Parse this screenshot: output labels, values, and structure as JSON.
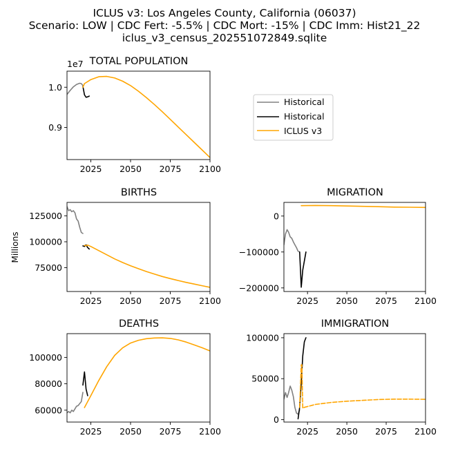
{
  "figure": {
    "title_lines": [
      "ICLUS v3: Los Angeles County, California (06037)",
      "Scenario: LOW | CDC Fert: -5.5% | CDC Mort: -15% | CDC Imm: Hist21_22",
      "iclus_v3_census_202551072849.sqlite"
    ],
    "y_label": "Millions"
  },
  "legend": {
    "entries": [
      {
        "label": "Historical",
        "color": "#808080"
      },
      {
        "label": "Historical",
        "color": "#000000"
      },
      {
        "label": "ICLUS v3",
        "color": "#ffa500"
      }
    ]
  },
  "chart_data": [
    {
      "id": "population",
      "type": "line",
      "title": "TOTAL POPULATION",
      "xlim": [
        2010,
        2100
      ],
      "ylim": [
        8200000,
        10400000
      ],
      "y_multiplier_label": "1e7",
      "x_ticks": [
        2025,
        2050,
        2075,
        2100
      ],
      "y_ticks": [
        {
          "value": 9000000,
          "label": "0.9"
        },
        {
          "value": 10000000,
          "label": "1.0"
        }
      ],
      "series": [
        {
          "color": "#808080",
          "dashed": false,
          "x": [
            2010,
            2012,
            2014,
            2016,
            2018,
            2019,
            2020
          ],
          "y": [
            9820000,
            9920000,
            10010000,
            10070000,
            10100000,
            10090000,
            10040000
          ]
        },
        {
          "color": "#000000",
          "dashed": false,
          "x": [
            2020,
            2021,
            2022,
            2023,
            2024
          ],
          "y": [
            10020000,
            9810000,
            9750000,
            9760000,
            9780000
          ]
        },
        {
          "color": "#ffa500",
          "dashed": false,
          "x": [
            2020,
            2021,
            2025,
            2030,
            2035,
            2040,
            2045,
            2050,
            2055,
            2060,
            2065,
            2070,
            2075,
            2080,
            2085,
            2090,
            2095,
            2100
          ],
          "y": [
            10000000,
            10090000,
            10190000,
            10260000,
            10270000,
            10230000,
            10150000,
            10040000,
            9900000,
            9740000,
            9570000,
            9390000,
            9200000,
            9010000,
            8820000,
            8630000,
            8440000,
            8250000
          ]
        }
      ]
    },
    {
      "id": "births",
      "type": "line",
      "title": "BIRTHS",
      "xlim": [
        2010,
        2100
      ],
      "ylim": [
        52000,
        138000
      ],
      "x_ticks": [
        2025,
        2050,
        2075,
        2100
      ],
      "y_ticks": [
        {
          "value": 75000,
          "label": "75000"
        },
        {
          "value": 100000,
          "label": "100000"
        },
        {
          "value": 125000,
          "label": "125000"
        }
      ],
      "series": [
        {
          "color": "#808080",
          "dashed": false,
          "x": [
            2010,
            2011,
            2012,
            2013,
            2014,
            2015,
            2016,
            2017,
            2018,
            2019,
            2020
          ],
          "y": [
            134000,
            130000,
            131000,
            129000,
            130000,
            128000,
            122000,
            120000,
            114000,
            109000,
            108000
          ]
        },
        {
          "color": "#000000",
          "dashed": false,
          "x": [
            2020,
            2021,
            2022,
            2023,
            2024
          ],
          "y": [
            96000,
            95500,
            97000,
            94500,
            93000
          ]
        },
        {
          "color": "#ffa500",
          "dashed": false,
          "x": [
            2021,
            2022,
            2023,
            2025,
            2030,
            2035,
            2040,
            2045,
            2050,
            2055,
            2060,
            2065,
            2070,
            2075,
            2080,
            2085,
            2090,
            2095,
            2100
          ],
          "y": [
            96500,
            96200,
            96800,
            95500,
            91500,
            87500,
            83500,
            80000,
            76800,
            74000,
            71300,
            68800,
            66500,
            64500,
            62600,
            60800,
            59200,
            57600,
            56000
          ]
        }
      ]
    },
    {
      "id": "migration",
      "type": "line",
      "title": "MIGRATION",
      "xlim": [
        2010,
        2100
      ],
      "ylim": [
        -210000,
        38000
      ],
      "x_ticks": [
        2025,
        2050,
        2075,
        2100
      ],
      "y_ticks": [
        {
          "value": -200000,
          "label": "−200000"
        },
        {
          "value": -100000,
          "label": "−100000"
        },
        {
          "value": 0,
          "label": "0"
        }
      ],
      "series": [
        {
          "color": "#808080",
          "dashed": false,
          "x": [
            2010,
            2011,
            2012,
            2013,
            2014,
            2015,
            2016,
            2017,
            2018,
            2019,
            2020
          ],
          "y": [
            -80000,
            -50000,
            -38000,
            -45000,
            -58000,
            -62000,
            -72000,
            -80000,
            -88000,
            -98000,
            -100000
          ]
        },
        {
          "color": "#000000",
          "dashed": false,
          "x": [
            2020,
            2021,
            2022,
            2023,
            2024
          ],
          "y": [
            -100000,
            -198000,
            -150000,
            -125000,
            -100000
          ]
        },
        {
          "color": "#ffa500",
          "dashed": false,
          "x": [
            2021,
            2030,
            2040,
            2050,
            2060,
            2070,
            2080,
            2090,
            2100
          ],
          "y": [
            29000,
            29500,
            29000,
            28000,
            27000,
            26000,
            25000,
            24500,
            24000
          ]
        }
      ]
    },
    {
      "id": "deaths",
      "type": "line",
      "title": "DEATHS",
      "xlim": [
        2010,
        2100
      ],
      "ylim": [
        51000,
        118000
      ],
      "x_ticks": [
        2025,
        2050,
        2075,
        2100
      ],
      "y_ticks": [
        {
          "value": 60000,
          "label": "60000"
        },
        {
          "value": 80000,
          "label": "80000"
        },
        {
          "value": 100000,
          "label": "100000"
        }
      ],
      "series": [
        {
          "color": "#808080",
          "dashed": false,
          "x": [
            2010,
            2011,
            2012,
            2013,
            2014,
            2015,
            2016,
            2017,
            2018,
            2019,
            2020
          ],
          "y": [
            58000,
            59000,
            58000,
            60000,
            59000,
            61000,
            63000,
            63500,
            65000,
            66500,
            73500
          ]
        },
        {
          "color": "#000000",
          "dashed": false,
          "x": [
            2020,
            2021,
            2022,
            2023
          ],
          "y": [
            79000,
            89000,
            76000,
            71000
          ]
        },
        {
          "color": "#ffa500",
          "dashed": false,
          "x": [
            2021,
            2025,
            2030,
            2035,
            2040,
            2045,
            2050,
            2055,
            2060,
            2065,
            2070,
            2075,
            2080,
            2085,
            2090,
            2095,
            2100
          ],
          "y": [
            62000,
            71000,
            82500,
            93000,
            101500,
            107200,
            110900,
            113000,
            114200,
            114700,
            114800,
            114400,
            113300,
            111600,
            109500,
            107300,
            104900
          ]
        }
      ]
    },
    {
      "id": "immigration",
      "type": "line",
      "title": "IMMIGRATION",
      "xlim": [
        2010,
        2100
      ],
      "ylim": [
        -3000,
        105000
      ],
      "x_ticks": [
        2025,
        2050,
        2075,
        2100
      ],
      "y_ticks": [
        {
          "value": 0,
          "label": "0"
        },
        {
          "value": 50000,
          "label": "50000"
        },
        {
          "value": 100000,
          "label": "100000"
        }
      ],
      "series": [
        {
          "color": "#808080",
          "dashed": false,
          "x": [
            2010,
            2011,
            2012,
            2013,
            2014,
            2015,
            2016,
            2017,
            2018,
            2019,
            2020
          ],
          "y": [
            25000,
            33000,
            27000,
            33000,
            41000,
            36000,
            28000,
            15000,
            8000,
            6500,
            12000
          ]
        },
        {
          "color": "#000000",
          "dashed": false,
          "x": [
            2019,
            2020,
            2021,
            2022,
            2023,
            2024
          ],
          "y": [
            1000,
            15000,
            45000,
            78000,
            95000,
            100000
          ]
        },
        {
          "color": "#ffa500",
          "dashed": true,
          "x": [
            2020,
            2021,
            2021.4,
            2022,
            2023,
            2025,
            2030,
            2040,
            2050,
            2060,
            2070,
            2080,
            2090,
            2100
          ],
          "y": [
            15000,
            67000,
            67000,
            14000,
            15000,
            16000,
            18500,
            21000,
            22500,
            23500,
            24500,
            25000,
            25000,
            24800
          ]
        }
      ]
    }
  ]
}
